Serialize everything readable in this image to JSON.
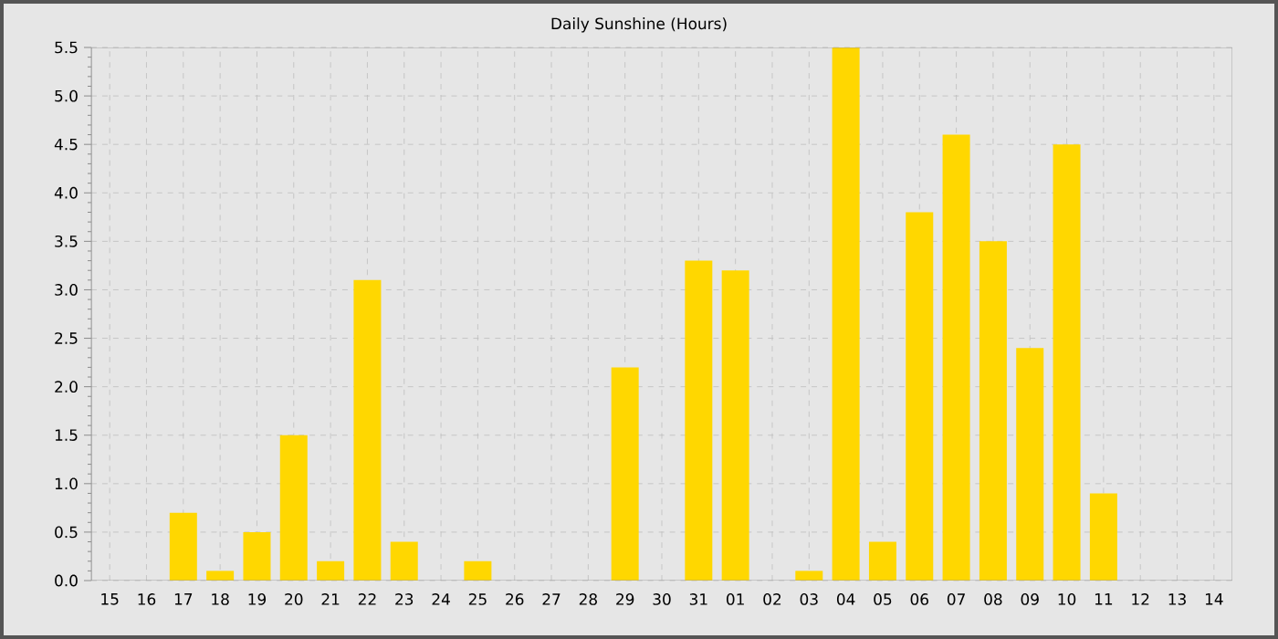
{
  "chart_data": {
    "type": "bar",
    "title": "Daily Sunshine (Hours)",
    "categories": [
      "15",
      "16",
      "17",
      "18",
      "19",
      "20",
      "21",
      "22",
      "23",
      "24",
      "25",
      "26",
      "27",
      "28",
      "29",
      "30",
      "31",
      "01",
      "02",
      "03",
      "04",
      "05",
      "06",
      "07",
      "08",
      "09",
      "10",
      "11",
      "12",
      "13",
      "14"
    ],
    "values": [
      0,
      0,
      0.7,
      0.1,
      0.5,
      1.5,
      0.2,
      3.1,
      0.4,
      0,
      0.2,
      0,
      0,
      0,
      2.2,
      0,
      3.3,
      3.2,
      0,
      0.1,
      5.5,
      0.4,
      3.8,
      4.6,
      3.5,
      2.4,
      4.5,
      0.9,
      0,
      0,
      0
    ],
    "color": "#ffd700",
    "ylim": [
      0,
      5.5
    ],
    "yticks": [
      {
        "value": 0,
        "label": "0.0"
      },
      {
        "value": 0.5,
        "label": "0.5"
      },
      {
        "value": 1,
        "label": "1.0"
      },
      {
        "value": 1.5,
        "label": "1.5"
      },
      {
        "value": 2,
        "label": "2.0"
      },
      {
        "value": 2.5,
        "label": "2.5"
      },
      {
        "value": 3,
        "label": "3.0"
      },
      {
        "value": 3.5,
        "label": "3.5"
      },
      {
        "value": 4,
        "label": "4.0"
      },
      {
        "value": 4.5,
        "label": "4.5"
      },
      {
        "value": 5,
        "label": "5.0"
      },
      {
        "value": 5.5,
        "label": "5.5"
      }
    ],
    "grid": true
  }
}
